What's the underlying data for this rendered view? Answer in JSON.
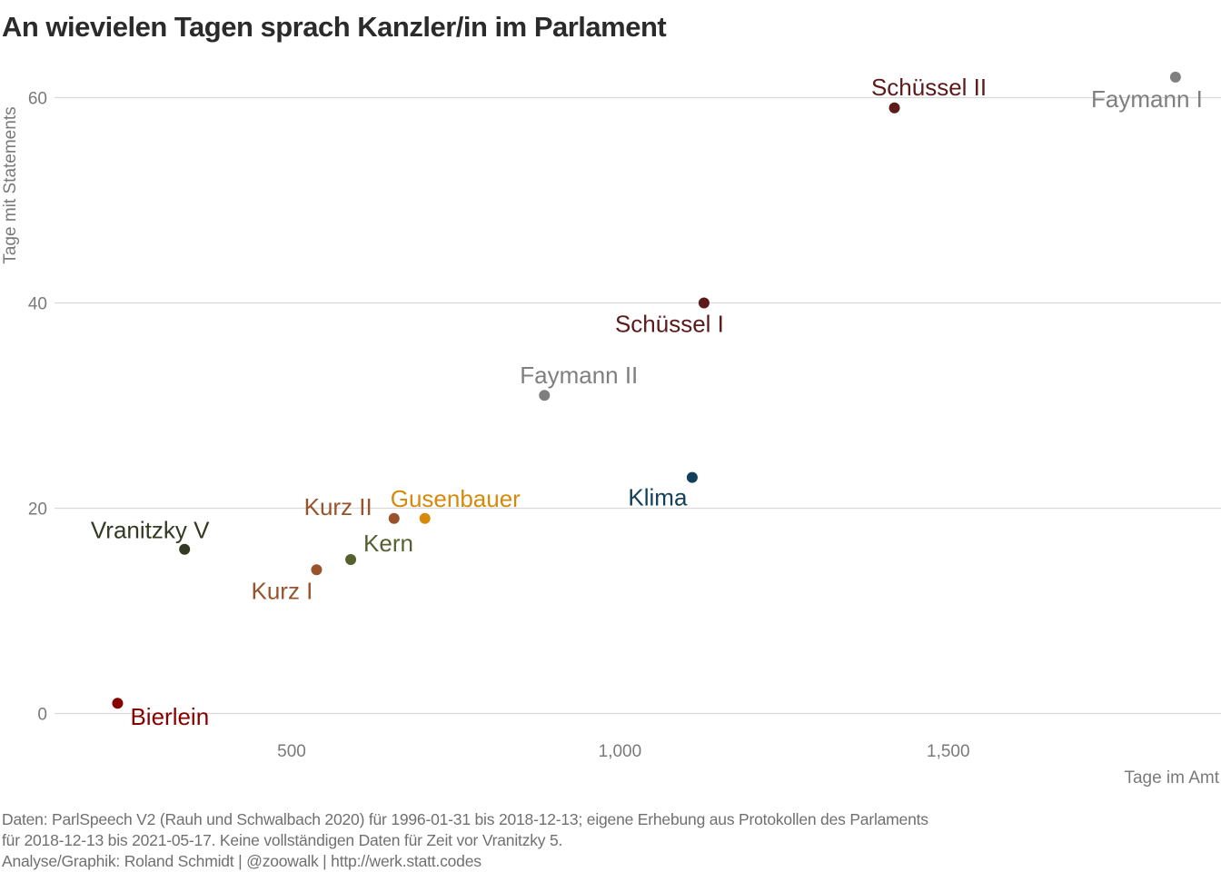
{
  "chart_data": {
    "type": "scatter",
    "title": "An wievielen Tagen sprach Kanzler/in im Parlament",
    "xlabel": "Tage im Amt",
    "ylabel": "Tage mit Statements",
    "xlim": [
      150,
      1865
    ],
    "ylim": [
      -3,
      64
    ],
    "xticks": [
      500,
      1000,
      1500
    ],
    "xtick_labels": [
      "500",
      "1,000",
      "1,500"
    ],
    "yticks": [
      0,
      20,
      40,
      60
    ],
    "ytick_labels": [
      "0",
      "20",
      "40",
      "60"
    ],
    "grid": "horizontal",
    "legend": "none",
    "points": [
      {
        "label": "Faymann I",
        "x": 1846,
        "y": 62,
        "color": "#7f7f7f"
      },
      {
        "label": "Schüssel II",
        "x": 1418,
        "y": 59,
        "color": "#5c1a1a"
      },
      {
        "label": "Schüssel I",
        "x": 1128,
        "y": 40,
        "color": "#5c1a1a"
      },
      {
        "label": "Faymann II",
        "x": 885,
        "y": 31,
        "color": "#7f7f7f"
      },
      {
        "label": "Klima",
        "x": 1110,
        "y": 23,
        "color": "#123f5a"
      },
      {
        "label": "Gusenbauer",
        "x": 703,
        "y": 19,
        "color": "#d68a0c"
      },
      {
        "label": "Kurz II",
        "x": 656,
        "y": 19,
        "color": "#99532a"
      },
      {
        "label": "Kern",
        "x": 590,
        "y": 15,
        "color": "#556030"
      },
      {
        "label": "Kurz I",
        "x": 538,
        "y": 14,
        "color": "#99532a"
      },
      {
        "label": "Vranitzky V",
        "x": 337,
        "y": 16,
        "color": "#323a22"
      },
      {
        "label": "Bierlein",
        "x": 235,
        "y": 1,
        "color": "#870000"
      }
    ]
  },
  "caption": {
    "line1": "Daten: ParlSpeech V2 (Rauh und Schwalbach 2020) für 1996-01-31 bis 2018-12-13; eigene Erhebung aus Protokollen des Parlaments",
    "line2": "für 2018-12-13 bis 2021-05-17. Keine vollständigen Daten für Zeit vor Vranitzky 5.",
    "line3": "Analyse/Graphik: Roland Schmidt | @zoowalk | http://werk.statt.codes"
  }
}
